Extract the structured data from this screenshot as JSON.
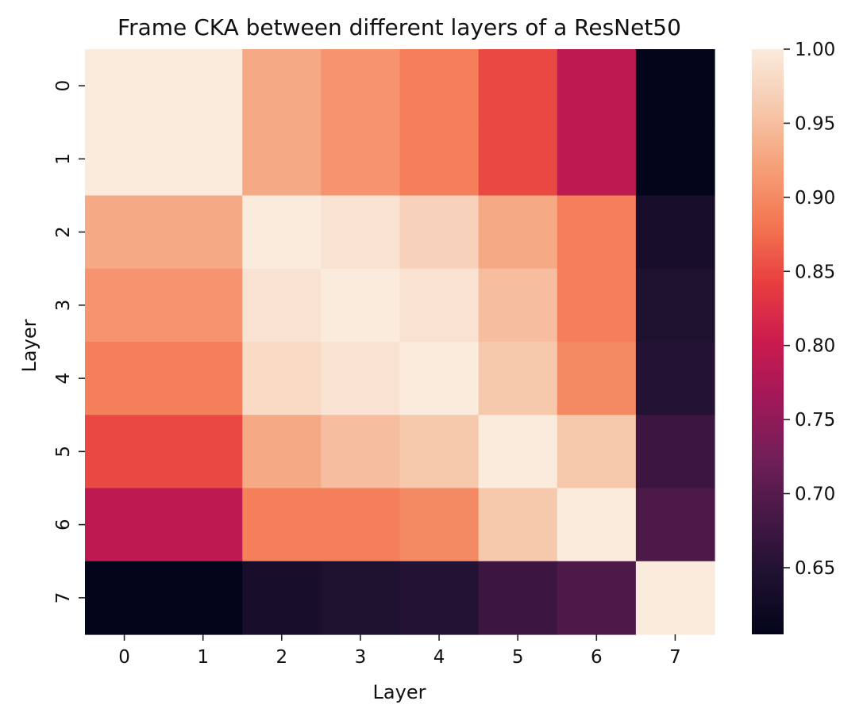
{
  "chart_data": {
    "type": "heatmap",
    "title": "Frame CKA between different layers of a ResNet50",
    "xlabel": "Layer",
    "ylabel": "Layer",
    "x_ticks": [
      "0",
      "1",
      "2",
      "3",
      "4",
      "5",
      "6",
      "7"
    ],
    "y_ticks": [
      "0",
      "1",
      "2",
      "3",
      "4",
      "5",
      "6",
      "7"
    ],
    "matrix": [
      [
        1.0,
        1.0,
        0.93,
        0.91,
        0.89,
        0.85,
        0.79,
        0.605
      ],
      [
        1.0,
        1.0,
        0.93,
        0.91,
        0.89,
        0.85,
        0.79,
        0.605
      ],
      [
        0.93,
        0.93,
        1.0,
        0.99,
        0.97,
        0.93,
        0.89,
        0.635
      ],
      [
        0.91,
        0.91,
        0.99,
        1.0,
        0.99,
        0.95,
        0.89,
        0.645
      ],
      [
        0.89,
        0.89,
        0.98,
        0.99,
        1.0,
        0.96,
        0.9,
        0.65
      ],
      [
        0.85,
        0.85,
        0.93,
        0.95,
        0.96,
        1.0,
        0.96,
        0.675
      ],
      [
        0.79,
        0.79,
        0.89,
        0.89,
        0.9,
        0.96,
        1.0,
        0.69
      ],
      [
        0.605,
        0.605,
        0.635,
        0.645,
        0.65,
        0.675,
        0.69,
        1.0
      ]
    ],
    "colormap": "rocket",
    "colorbar": {
      "vmin": 0.605,
      "vmax": 1.0,
      "ticks": [
        0.65,
        0.7,
        0.75,
        0.8,
        0.85,
        0.9,
        0.95,
        1.0
      ],
      "tick_labels": [
        "0.65",
        "0.70",
        "0.75",
        "0.80",
        "0.85",
        "0.90",
        "0.95",
        "1.00"
      ]
    },
    "grid": false
  }
}
